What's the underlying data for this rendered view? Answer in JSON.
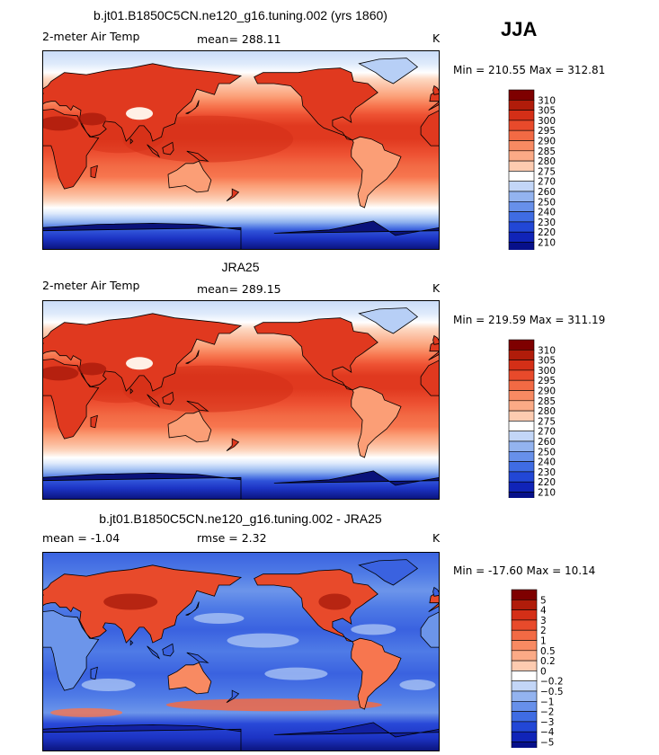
{
  "season": "JJA",
  "colors": {
    "warm": [
      "#fff0e6",
      "#fdd8c2",
      "#fcbb9c",
      "#fb9e76",
      "#f7764f",
      "#ee5233",
      "#e0391f",
      "#c72612",
      "#a31608",
      "#7e0000"
    ],
    "cool": [
      "#deeafb",
      "#b7cff6",
      "#8fb1ee",
      "#6c95ea",
      "#4f7be6",
      "#3a62e0",
      "#2949d8",
      "#1c33c4",
      "#1221a2",
      "#0a127a"
    ],
    "land_outline": "#000000"
  },
  "panels": [
    {
      "title": "b.jt01.B1850C5CN.ne120_g16.tuning.002 (yrs 1860)",
      "left_label": "2-meter Air Temp",
      "center_label": "mean= 288.11",
      "units": "K",
      "min_max": "Min = 210.55 Max = 312.81"
    },
    {
      "title": "JRA25",
      "left_label": "2-meter Air Temp",
      "center_label": "mean= 289.15",
      "units": "K",
      "min_max": "Min = 219.59 Max = 311.19"
    },
    {
      "title": "b.jt01.B1850C5CN.ne120_g16.tuning.002 - JRA25",
      "left_label": "mean =   -1.04",
      "center_label": "rmse =    2.32",
      "units": "K",
      "min_max": "Min = -17.60 Max =  10.14"
    }
  ],
  "chart_data": [
    {
      "type": "heatmap",
      "title": "b.jt01.B1850C5CN.ne120_g16.tuning.002 (yrs 1860)",
      "variable": "2-meter Air Temp",
      "units": "K",
      "mean": 288.11,
      "min": 210.55,
      "max": 312.81,
      "colorbar_levels": [
        310,
        305,
        300,
        295,
        290,
        285,
        280,
        275,
        270,
        260,
        250,
        240,
        230,
        220,
        210
      ],
      "colorbar_colors": [
        "#7e0000",
        "#b01c0a",
        "#d42f17",
        "#e84a2b",
        "#f26a44",
        "#f88a62",
        "#fbaa86",
        "#fdcbb0",
        "#ffffff",
        "#c3d6f7",
        "#93b3ef",
        "#6790ea",
        "#3f6ce3",
        "#2247d6",
        "#1024b8",
        "#07108a"
      ]
    },
    {
      "type": "heatmap",
      "title": "JRA25",
      "variable": "2-meter Air Temp",
      "units": "K",
      "mean": 289.15,
      "min": 219.59,
      "max": 311.19,
      "colorbar_levels": [
        310,
        305,
        300,
        295,
        290,
        285,
        280,
        275,
        270,
        260,
        250,
        240,
        230,
        220,
        210
      ],
      "colorbar_colors": [
        "#7e0000",
        "#b01c0a",
        "#d42f17",
        "#e84a2b",
        "#f26a44",
        "#f88a62",
        "#fbaa86",
        "#fdcbb0",
        "#ffffff",
        "#c3d6f7",
        "#93b3ef",
        "#6790ea",
        "#3f6ce3",
        "#2247d6",
        "#1024b8",
        "#07108a"
      ]
    },
    {
      "type": "heatmap",
      "title": "b.jt01.B1850C5CN.ne120_g16.tuning.002 - JRA25",
      "units": "K",
      "mean": -1.04,
      "rmse": 2.32,
      "min": -17.6,
      "max": 10.14,
      "colorbar_levels": [
        5,
        4,
        3,
        2,
        1,
        0.5,
        0.2,
        0,
        -0.2,
        -0.5,
        -1,
        -2,
        -3,
        -4,
        -5
      ],
      "colorbar_level_labels": [
        "5",
        "4",
        "3",
        "2",
        "1",
        "0.5",
        "0.2",
        "0",
        "−0.2",
        "−0.5",
        "−1",
        "−2",
        "−3",
        "−4",
        "−5"
      ],
      "colorbar_colors": [
        "#7e0000",
        "#b01c0a",
        "#d42f17",
        "#e84a2b",
        "#f26a44",
        "#f88a62",
        "#fbaa86",
        "#fdcbb0",
        "#ffffff",
        "#c3d6f7",
        "#93b3ef",
        "#6790ea",
        "#3f6ce3",
        "#2247d6",
        "#1024b8",
        "#07108a"
      ]
    }
  ]
}
